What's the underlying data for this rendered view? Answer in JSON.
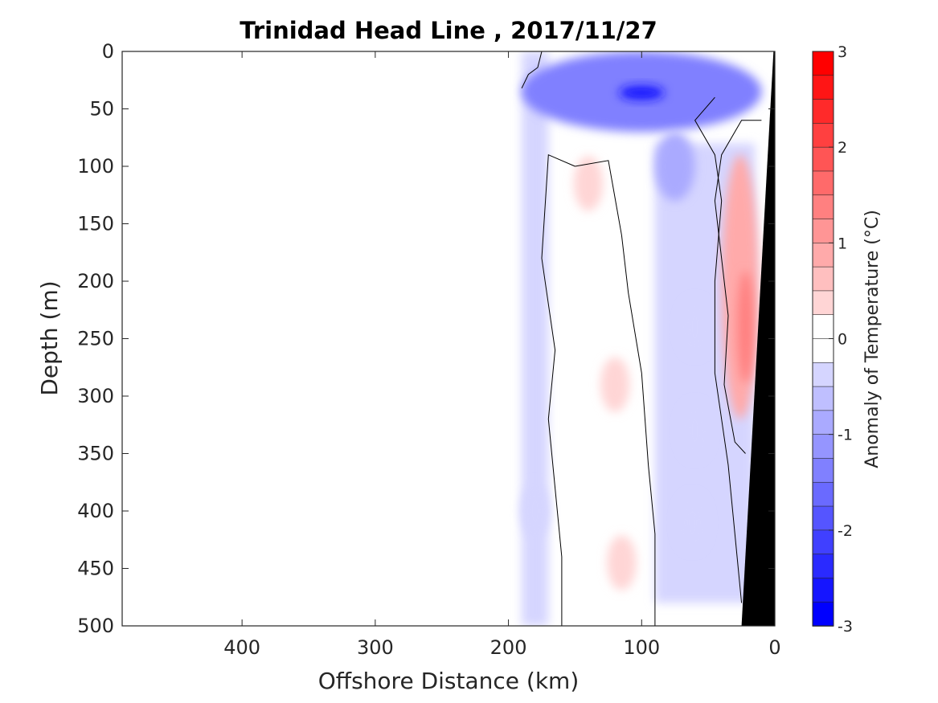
{
  "chart_data": {
    "type": "heatmap",
    "title": "Trinidad Head Line , 2017/11/27",
    "xlabel": "Offshore Distance (km)",
    "ylabel": "Depth (m)",
    "colorbar_label": "Anomaly of Temperature (°C)",
    "xlim": [
      490,
      0
    ],
    "x_reversed": true,
    "ylim": [
      0,
      500
    ],
    "y_reversed": true,
    "x_ticks": [
      400,
      300,
      200,
      100,
      0
    ],
    "y_ticks": [
      0,
      50,
      100,
      150,
      200,
      250,
      300,
      350,
      400,
      450,
      500
    ],
    "colorbar_range": [
      -3,
      3
    ],
    "colorbar_ticks": [
      -3,
      -2,
      -1,
      0,
      1,
      2,
      3
    ],
    "contour_levels_step": 0.25,
    "contour_line_level": 0,
    "data_coverage_x": [
      190,
      0
    ],
    "colors": {
      "neg_max": "#0000ff",
      "zero": "#ffffff",
      "pos_max": "#ff0000",
      "bathymetry": "#000000",
      "contour": "#000000"
    },
    "bathymetry": {
      "description_points": [
        [
          1,
          0
        ],
        [
          25,
          500
        ]
      ]
    },
    "features": [
      {
        "kind": "cold_core",
        "x_km": 100,
        "depth_m": 38,
        "anomaly": -2.2
      },
      {
        "kind": "cold_band",
        "x_range": [
          190,
          10
        ],
        "depth_range": [
          0,
          70
        ],
        "anomaly": -1.3
      },
      {
        "kind": "cold_tongue",
        "x_range": [
          90,
          60
        ],
        "depth_range": [
          70,
          130
        ],
        "anomaly": -0.8
      },
      {
        "kind": "warm_patch",
        "x_km": 140,
        "depth_m": 115,
        "anomaly": 0.3
      },
      {
        "kind": "warm_nearshore",
        "x_range": [
          40,
          12
        ],
        "depth_range": [
          90,
          320
        ],
        "anomaly": 0.9
      },
      {
        "kind": "warm_patch",
        "x_km": 120,
        "depth_m": 290,
        "anomaly": 0.3
      },
      {
        "kind": "warm_patch",
        "x_km": 115,
        "depth_m": 445,
        "anomaly": 0.3
      },
      {
        "kind": "cold_patch",
        "x_km": 60,
        "depth_m": 240,
        "anomaly": -0.5
      },
      {
        "kind": "cold_patch",
        "x_km": 60,
        "depth_m": 330,
        "anomaly": -0.5
      },
      {
        "kind": "cold_patch",
        "x_km": 62,
        "depth_m": 410,
        "anomaly": -0.5
      },
      {
        "kind": "cold_patch",
        "x_km": 180,
        "depth_m": 400,
        "anomaly": -0.5
      }
    ]
  }
}
